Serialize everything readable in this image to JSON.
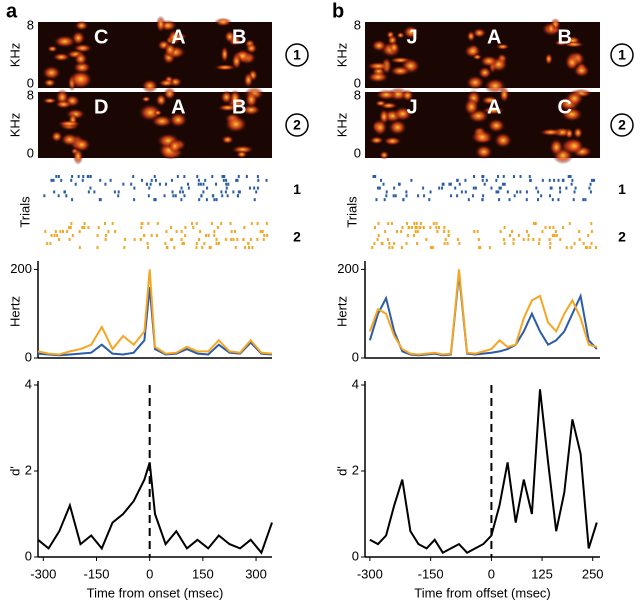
{
  "panels": [
    {
      "letter": "a",
      "spectrograms": [
        {
          "ylabel": "KHz",
          "yticks": [
            0,
            8
          ],
          "syllables": [
            "C",
            "A",
            "B"
          ],
          "condition": "1"
        },
        {
          "ylabel": "KHz",
          "yticks": [
            0,
            8
          ],
          "syllables": [
            "D",
            "A",
            "B"
          ],
          "condition": "2"
        }
      ],
      "raster": {
        "ylabel": "Trials",
        "rows": [
          "1",
          "2"
        ]
      }
    },
    {
      "letter": "b",
      "spectrograms": [
        {
          "ylabel": "KHz",
          "yticks": [
            0,
            8
          ],
          "syllables": [
            "J",
            "A",
            "B"
          ],
          "condition": "1"
        },
        {
          "ylabel": "KHz",
          "yticks": [
            0,
            8
          ],
          "syllables": [
            "J",
            "A",
            "C"
          ],
          "condition": "2"
        }
      ],
      "raster": {
        "ylabel": "Trials",
        "rows": [
          "1",
          "2"
        ]
      }
    }
  ],
  "chart_data": [
    {
      "type": "line",
      "ylabel": "Hertz",
      "xlim": [
        -315,
        345
      ],
      "ylim": [
        0,
        210
      ],
      "yticks": [
        0,
        200
      ],
      "x": [
        -315,
        -285,
        -255,
        -225,
        -195,
        -165,
        -135,
        -105,
        -75,
        -45,
        -15,
        0,
        15,
        45,
        75,
        105,
        135,
        165,
        195,
        225,
        255,
        285,
        315,
        345
      ],
      "series": [
        {
          "name": "1",
          "color": "#2b5ca8",
          "values": [
            10,
            8,
            6,
            8,
            10,
            12,
            30,
            10,
            8,
            12,
            40,
            160,
            20,
            8,
            10,
            20,
            10,
            8,
            30,
            12,
            10,
            35,
            10,
            8
          ]
        },
        {
          "name": "2",
          "color": "#f5a623",
          "values": [
            15,
            10,
            8,
            15,
            20,
            30,
            70,
            20,
            50,
            30,
            60,
            200,
            25,
            10,
            12,
            25,
            15,
            15,
            40,
            15,
            12,
            40,
            12,
            10
          ]
        }
      ]
    },
    {
      "type": "line",
      "ylabel": "d'",
      "xlabel": "Time from onset (msec)",
      "xlim": [
        -315,
        345
      ],
      "ylim": [
        0,
        4
      ],
      "yticks": [
        0,
        2,
        4
      ],
      "xticks": [
        -300,
        -150,
        0,
        150,
        300
      ],
      "vline": 0,
      "x": [
        -315,
        -285,
        -255,
        -225,
        -195,
        -165,
        -135,
        -105,
        -75,
        -45,
        -15,
        0,
        15,
        45,
        75,
        105,
        135,
        165,
        195,
        225,
        255,
        285,
        315,
        345
      ],
      "series": [
        {
          "color": "#000000",
          "values": [
            0.4,
            0.2,
            0.6,
            1.2,
            0.3,
            0.5,
            0.2,
            0.8,
            1.0,
            1.3,
            1.8,
            2.2,
            1.0,
            0.3,
            0.6,
            0.2,
            0.4,
            0.2,
            0.5,
            0.3,
            0.2,
            0.4,
            0.1,
            0.8
          ]
        }
      ]
    },
    {
      "type": "line",
      "ylabel": "Hertz",
      "xlim": [
        -312,
        268
      ],
      "ylim": [
        0,
        210
      ],
      "yticks": [
        0,
        200
      ],
      "x": [
        -300,
        -280,
        -260,
        -240,
        -220,
        -200,
        -180,
        -160,
        -140,
        -120,
        -100,
        -80,
        -60,
        -40,
        -20,
        0,
        20,
        40,
        60,
        80,
        100,
        120,
        140,
        160,
        180,
        200,
        220,
        240,
        260
      ],
      "series": [
        {
          "name": "1",
          "color": "#2b5ca8",
          "values": [
            40,
            100,
            135,
            60,
            15,
            8,
            6,
            8,
            10,
            6,
            8,
            190,
            10,
            8,
            10,
            12,
            15,
            20,
            30,
            60,
            100,
            60,
            30,
            40,
            60,
            100,
            140,
            40,
            20
          ]
        },
        {
          "name": "2",
          "color": "#f5a623",
          "values": [
            60,
            110,
            100,
            50,
            20,
            10,
            8,
            10,
            12,
            8,
            10,
            200,
            12,
            10,
            15,
            20,
            40,
            25,
            30,
            90,
            130,
            140,
            80,
            60,
            100,
            130,
            90,
            30,
            25
          ]
        }
      ]
    },
    {
      "type": "line",
      "ylabel": "d'",
      "xlabel": "Time from offset (msec)",
      "xlim": [
        -312,
        268
      ],
      "ylim": [
        0,
        4
      ],
      "yticks": [
        0,
        2,
        4
      ],
      "xticks": [
        -300,
        -150,
        0,
        125,
        250
      ],
      "vline": 0,
      "x": [
        -300,
        -280,
        -260,
        -240,
        -220,
        -200,
        -180,
        -160,
        -140,
        -120,
        -100,
        -80,
        -60,
        -40,
        -20,
        0,
        20,
        40,
        60,
        80,
        100,
        120,
        140,
        160,
        180,
        200,
        220,
        240,
        260
      ],
      "series": [
        {
          "color": "#000000",
          "values": [
            0.4,
            0.3,
            0.5,
            1.2,
            1.8,
            0.6,
            0.3,
            0.2,
            0.4,
            0.1,
            0.2,
            0.3,
            0.1,
            0.2,
            0.3,
            0.5,
            1.2,
            2.2,
            0.8,
            1.8,
            1.0,
            3.9,
            2.2,
            0.6,
            1.5,
            3.2,
            2.4,
            0.2,
            0.8
          ]
        }
      ]
    }
  ]
}
